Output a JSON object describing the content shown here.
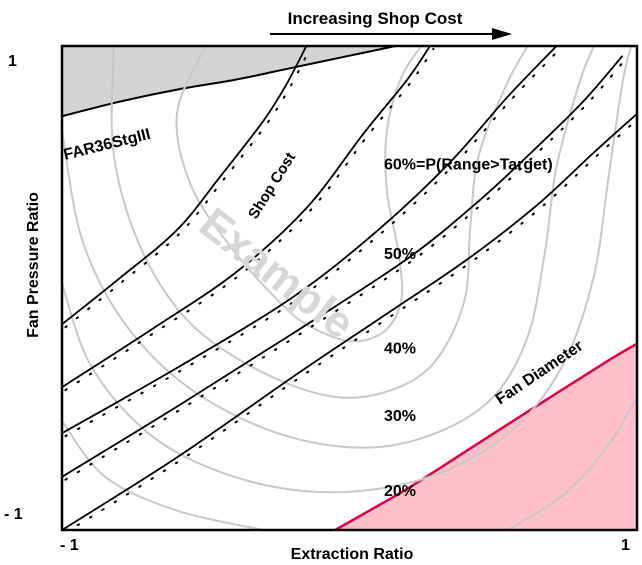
{
  "chart_data": {
    "type": "contour",
    "title": "Increasing Shop Cost",
    "xlabel": "Extraction Ratio",
    "ylabel": "Fan Pressure Ratio",
    "xlim": [
      -1,
      1
    ],
    "ylim": [
      -1,
      1
    ],
    "x_ticks": [
      "- 1",
      "1"
    ],
    "y_ticks": [
      "1",
      "- 1"
    ],
    "grid": false,
    "watermark": "Example",
    "colors": {
      "constraint_fill_top": "#d3d3d3",
      "constraint_fill_bottom": "#ffc0cb",
      "constraint_edge_bottom": "#e0004a",
      "probability_contours": "#c8c8c8",
      "shop_cost_lines": "#000000"
    },
    "constraints": [
      {
        "label": "FAR36StgIII",
        "region": "upper-left",
        "boundary": [
          [
            -1,
            0.71
          ],
          [
            -0.8,
            0.77
          ],
          [
            -0.6,
            0.82
          ],
          [
            -0.4,
            0.86
          ],
          [
            -0.2,
            0.91
          ],
          [
            0,
            0.96
          ],
          [
            0.16,
            1.0
          ]
        ]
      },
      {
        "label": "Fan Diameter",
        "region": "lower-right",
        "boundary": [
          [
            -0.05,
            -1.0
          ],
          [
            0.2,
            -0.83
          ],
          [
            0.45,
            -0.64
          ],
          [
            0.7,
            -0.45
          ],
          [
            0.9,
            -0.3
          ],
          [
            1.0,
            -0.23
          ]
        ]
      }
    ],
    "shop_cost_label": "Shop Cost",
    "shop_cost_lines": [
      {
        "name": "cost-1",
        "points": [
          [
            -1,
            -0.15
          ],
          [
            -0.8,
            0.04
          ],
          [
            -0.6,
            0.24
          ],
          [
            -0.45,
            0.46
          ],
          [
            -0.3,
            0.69
          ],
          [
            -0.22,
            0.84
          ],
          [
            -0.15,
            1.0
          ]
        ]
      },
      {
        "name": "cost-2",
        "points": [
          [
            -1,
            -0.41
          ],
          [
            -0.7,
            -0.18
          ],
          [
            -0.4,
            0.06
          ],
          [
            -0.15,
            0.33
          ],
          [
            0.05,
            0.64
          ],
          [
            0.2,
            0.86
          ],
          [
            0.28,
            1.0
          ]
        ]
      },
      {
        "name": "cost-3",
        "points": [
          [
            -1,
            -0.6
          ],
          [
            -0.6,
            -0.33
          ],
          [
            -0.2,
            -0.04
          ],
          [
            0.1,
            0.24
          ],
          [
            0.35,
            0.52
          ],
          [
            0.55,
            0.79
          ],
          [
            0.72,
            1.0
          ]
        ]
      },
      {
        "name": "cost-4",
        "points": [
          [
            -1,
            -0.78
          ],
          [
            -0.6,
            -0.49
          ],
          [
            -0.2,
            -0.19
          ],
          [
            0.2,
            0.12
          ],
          [
            0.45,
            0.36
          ],
          [
            0.65,
            0.58
          ],
          [
            0.82,
            0.78
          ],
          [
            0.95,
            0.96
          ]
        ]
      },
      {
        "name": "cost-5",
        "points": [
          [
            -1,
            -1.0
          ],
          [
            -0.6,
            -0.7
          ],
          [
            -0.2,
            -0.37
          ],
          [
            0.1,
            -0.13
          ],
          [
            0.4,
            0.11
          ],
          [
            0.65,
            0.34
          ],
          [
            0.85,
            0.56
          ],
          [
            1.0,
            0.72
          ]
        ]
      }
    ],
    "probability_contours": [
      {
        "label": "60%=P(Range>Target)",
        "points": [
          [
            -0.5,
            1.0
          ],
          [
            -0.6,
            0.72
          ],
          [
            -0.55,
            0.42
          ],
          [
            -0.4,
            0.15
          ],
          [
            -0.25,
            -0.05
          ],
          [
            -0.15,
            -0.15
          ],
          [
            0.0,
            -0.22
          ],
          [
            0.12,
            -0.18
          ],
          [
            0.18,
            -0.05
          ],
          [
            0.17,
            0.15
          ],
          [
            0.13,
            0.4
          ],
          [
            0.13,
            0.65
          ],
          [
            0.18,
            0.87
          ],
          [
            0.25,
            1.0
          ]
        ]
      },
      {
        "label": "50%",
        "points": [
          [
            -0.82,
            1.0
          ],
          [
            -0.82,
            0.55
          ],
          [
            -0.72,
            0.15
          ],
          [
            -0.55,
            -0.15
          ],
          [
            -0.3,
            -0.35
          ],
          [
            -0.05,
            -0.45
          ],
          [
            0.15,
            -0.42
          ],
          [
            0.3,
            -0.3
          ],
          [
            0.4,
            -0.05
          ],
          [
            0.42,
            0.25
          ],
          [
            0.45,
            0.55
          ],
          [
            0.55,
            0.85
          ],
          [
            0.62,
            1.0
          ]
        ]
      },
      {
        "label": "40%",
        "points": [
          [
            -1.0,
            0.65
          ],
          [
            -0.93,
            0.2
          ],
          [
            -0.78,
            -0.15
          ],
          [
            -0.55,
            -0.42
          ],
          [
            -0.25,
            -0.6
          ],
          [
            0.05,
            -0.66
          ],
          [
            0.3,
            -0.6
          ],
          [
            0.5,
            -0.45
          ],
          [
            0.62,
            -0.2
          ],
          [
            0.68,
            0.15
          ],
          [
            0.72,
            0.5
          ],
          [
            0.8,
            0.85
          ],
          [
            0.85,
            1.0
          ]
        ]
      },
      {
        "label": "30%",
        "points": [
          [
            -1.0,
            0.02
          ],
          [
            -0.9,
            -0.32
          ],
          [
            -0.7,
            -0.6
          ],
          [
            -0.45,
            -0.76
          ],
          [
            -0.15,
            -0.84
          ],
          [
            0.15,
            -0.82
          ],
          [
            0.4,
            -0.72
          ],
          [
            0.6,
            -0.55
          ],
          [
            0.75,
            -0.3
          ],
          [
            0.85,
            0.05
          ],
          [
            0.9,
            0.45
          ],
          [
            0.95,
            0.85
          ],
          [
            0.98,
            1.0
          ]
        ]
      },
      {
        "label": "20%",
        "points": [
          [
            -1.0,
            -0.55
          ],
          [
            -0.85,
            -0.78
          ],
          [
            -0.6,
            -0.92
          ],
          [
            -0.3,
            -1.0
          ]
        ]
      },
      {
        "label": "",
        "points": [
          [
            0.55,
            -1.0
          ],
          [
            0.75,
            -0.85
          ],
          [
            0.9,
            -0.65
          ],
          [
            1.0,
            -0.45
          ]
        ]
      }
    ],
    "contour_labels": [
      {
        "text": "60%=P(Range>Target)",
        "at": [
          0.12,
          0.49
        ]
      },
      {
        "text": "50%",
        "at": [
          0.12,
          0.12
        ]
      },
      {
        "text": "40%",
        "at": [
          0.12,
          -0.27
        ]
      },
      {
        "text": "30%",
        "at": [
          0.12,
          -0.55
        ]
      },
      {
        "text": "20%",
        "at": [
          0.12,
          -0.86
        ]
      }
    ]
  }
}
